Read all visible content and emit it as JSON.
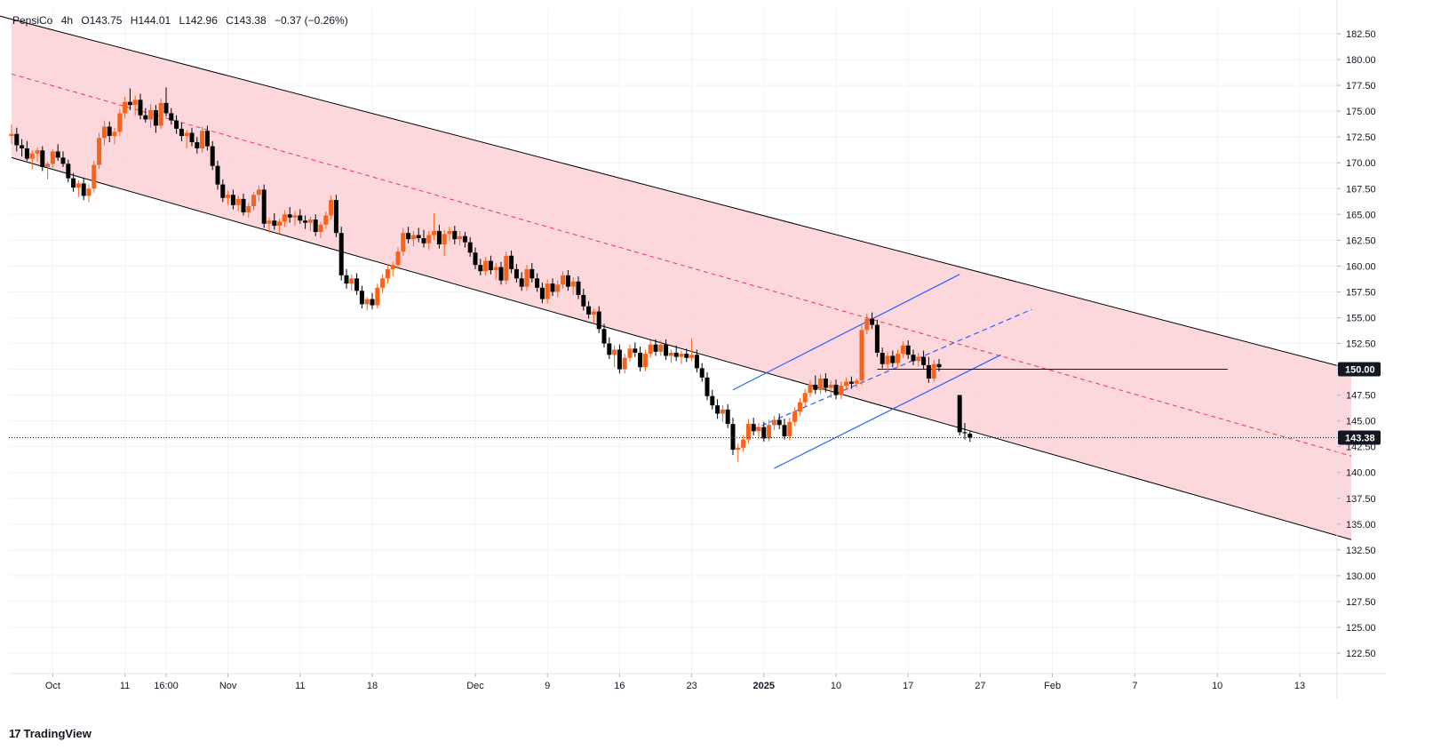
{
  "header": {
    "symbol": "PepsiCo",
    "interval": "4h",
    "open": "O143.75",
    "high": "H144.01",
    "low": "L142.96",
    "close": "C143.38",
    "change": "−0.37 (−0.26%)"
  },
  "footer": {
    "brand": "TradingView",
    "logo": "17"
  },
  "colors": {
    "up": "#f7631b",
    "down": "#000000",
    "channel_fill": "#fbd1d6",
    "channel_edge": "#000000",
    "mid_line": "#f23645",
    "trend": "#2962ff",
    "grid": "#f0f3fa",
    "last_price_label": "#131722"
  },
  "chart_data": {
    "type": "candlestick",
    "title": "",
    "xlabel": "",
    "ylabel": "",
    "ylim": [
      120.5,
      184.5
    ],
    "y_ticks": [
      "122.50",
      "125.00",
      "127.50",
      "130.00",
      "132.50",
      "135.00",
      "137.50",
      "140.00",
      "142.50",
      "145.00",
      "147.50",
      "150.00",
      "152.50",
      "155.00",
      "157.50",
      "160.00",
      "162.50",
      "165.00",
      "167.50",
      "170.00",
      "172.50",
      "175.00",
      "177.50",
      "180.00",
      "182.50"
    ],
    "x_ticks": [
      {
        "label": "Oct",
        "t": 4
      },
      {
        "label": "11",
        "t": 11
      },
      {
        "label": "16:00",
        "t": 15
      },
      {
        "label": "Nov",
        "t": 21
      },
      {
        "label": "11",
        "t": 28
      },
      {
        "label": "18",
        "t": 35
      },
      {
        "label": "Dec",
        "t": 45
      },
      {
        "label": "9",
        "t": 52
      },
      {
        "label": "16",
        "t": 59
      },
      {
        "label": "23",
        "t": 66
      },
      {
        "label": "2025",
        "t": 73,
        "bold": true
      },
      {
        "label": "10",
        "t": 80
      },
      {
        "label": "17",
        "t": 87
      },
      {
        "label": "27",
        "t": 94
      },
      {
        "label": "Feb",
        "t": 101
      },
      {
        "label": "7",
        "t": 109
      },
      {
        "label": "10",
        "t": 117
      },
      {
        "label": "13",
        "t": 125
      }
    ],
    "last_price": "143.38",
    "horizontal_level": "150.00",
    "candles": [
      [
        0,
        172.6,
        173.7,
        171.8,
        172.8
      ],
      [
        0.5,
        172.8,
        173.4,
        171.1,
        171.7
      ],
      [
        1,
        171.7,
        172.3,
        170.6,
        171.4
      ],
      [
        1.5,
        171.4,
        172.1,
        170.2,
        170.4
      ],
      [
        2,
        170.4,
        171.2,
        169.4,
        170.9
      ],
      [
        2.5,
        170.9,
        171.5,
        170.1,
        171.2
      ],
      [
        3,
        171.2,
        171.6,
        169.2,
        169.6
      ],
      [
        3.5,
        169.6,
        170.1,
        168.4,
        169.9
      ],
      [
        4,
        169.9,
        171.3,
        169.5,
        171.1
      ],
      [
        4.5,
        171.1,
        171.8,
        170.2,
        170.5
      ],
      [
        5,
        170.5,
        171.1,
        169.6,
        169.9
      ],
      [
        5.5,
        169.9,
        170.3,
        168.1,
        168.5
      ],
      [
        6,
        168.5,
        169.0,
        167.2,
        167.6
      ],
      [
        6.5,
        167.6,
        168.3,
        166.7,
        168.0
      ],
      [
        7,
        168.0,
        168.5,
        166.4,
        166.8
      ],
      [
        7.5,
        166.8,
        167.9,
        166.2,
        167.5
      ],
      [
        8,
        167.5,
        170.2,
        167.1,
        169.8
      ],
      [
        8.5,
        169.8,
        172.9,
        169.4,
        172.4
      ],
      [
        9,
        172.4,
        174.1,
        171.7,
        173.5
      ],
      [
        9.5,
        173.5,
        174.0,
        172.0,
        172.6
      ],
      [
        10,
        172.6,
        173.4,
        171.8,
        173.0
      ],
      [
        10.5,
        173.0,
        175.2,
        172.6,
        174.8
      ],
      [
        11,
        174.8,
        176.4,
        174.3,
        175.9
      ],
      [
        11.5,
        175.9,
        177.2,
        175.1,
        175.6
      ],
      [
        12,
        175.6,
        176.5,
        174.6,
        176.1
      ],
      [
        12.5,
        176.1,
        176.7,
        174.2,
        174.6
      ],
      [
        13,
        174.6,
        175.3,
        173.9,
        174.2
      ],
      [
        13.5,
        174.2,
        175.7,
        173.4,
        175.1
      ],
      [
        14,
        175.1,
        175.6,
        172.9,
        173.6
      ],
      [
        14.5,
        173.6,
        176.2,
        173.3,
        175.8
      ],
      [
        15,
        175.8,
        177.3,
        174.5,
        174.8
      ],
      [
        15.5,
        174.8,
        175.3,
        173.7,
        174.1
      ],
      [
        16,
        174.1,
        174.6,
        172.8,
        173.3
      ],
      [
        16.5,
        173.3,
        173.9,
        172.1,
        172.6
      ],
      [
        17,
        172.6,
        173.2,
        171.4,
        172.9
      ],
      [
        17.5,
        172.9,
        173.4,
        171.6,
        172.0
      ],
      [
        18,
        172.0,
        172.5,
        170.9,
        171.4
      ],
      [
        18.5,
        171.4,
        173.5,
        171.0,
        173.1
      ],
      [
        19,
        173.1,
        173.6,
        171.2,
        171.6
      ],
      [
        19.5,
        171.6,
        172.1,
        169.3,
        169.7
      ],
      [
        20,
        169.7,
        170.2,
        167.4,
        167.9
      ],
      [
        20.5,
        167.9,
        168.4,
        166.2,
        166.6
      ],
      [
        21,
        166.6,
        167.3,
        165.9,
        166.9
      ],
      [
        21.5,
        166.9,
        167.4,
        165.5,
        165.9
      ],
      [
        22,
        165.9,
        166.8,
        165.3,
        166.5
      ],
      [
        22.5,
        166.5,
        167.0,
        164.9,
        165.2
      ],
      [
        23,
        165.2,
        166.1,
        164.7,
        165.8
      ],
      [
        23.5,
        165.8,
        167.2,
        165.4,
        166.9
      ],
      [
        24,
        166.9,
        167.8,
        166.3,
        167.4
      ],
      [
        24.5,
        167.4,
        167.9,
        163.7,
        164.1
      ],
      [
        25,
        164.1,
        164.7,
        163.2,
        164.4
      ],
      [
        25.5,
        164.4,
        165.1,
        163.5,
        163.9
      ],
      [
        26,
        163.9,
        164.6,
        163.1,
        164.3
      ],
      [
        26.5,
        164.3,
        165.4,
        163.8,
        165.0
      ],
      [
        27,
        165.0,
        165.7,
        164.2,
        164.7
      ],
      [
        27.5,
        164.7,
        165.3,
        163.9,
        164.9
      ],
      [
        28,
        164.9,
        165.5,
        164.1,
        164.4
      ],
      [
        28.5,
        164.4,
        164.9,
        163.6,
        164.2
      ],
      [
        29,
        164.2,
        164.8,
        163.4,
        164.5
      ],
      [
        29.5,
        164.5,
        165.0,
        162.9,
        163.3
      ],
      [
        30,
        163.3,
        164.3,
        162.7,
        164.0
      ],
      [
        30.5,
        164.0,
        165.3,
        163.6,
        164.9
      ],
      [
        31,
        164.9,
        166.8,
        164.5,
        166.4
      ],
      [
        31.5,
        166.4,
        166.9,
        162.8,
        163.2
      ],
      [
        32,
        163.2,
        163.8,
        158.6,
        159.1
      ],
      [
        32.5,
        159.1,
        159.7,
        157.8,
        158.3
      ],
      [
        33,
        158.3,
        159.2,
        157.6,
        158.8
      ],
      [
        33.5,
        158.8,
        159.3,
        157.2,
        157.6
      ],
      [
        34,
        157.6,
        158.1,
        155.9,
        156.3
      ],
      [
        34.5,
        156.3,
        157.0,
        155.7,
        156.8
      ],
      [
        35,
        156.8,
        157.4,
        155.8,
        156.2
      ],
      [
        35.5,
        156.2,
        158.3,
        155.9,
        157.9
      ],
      [
        36,
        157.9,
        159.2,
        157.4,
        158.8
      ],
      [
        36.5,
        158.8,
        160.2,
        158.3,
        159.7
      ],
      [
        37,
        159.7,
        160.4,
        159.0,
        160.1
      ],
      [
        37.5,
        160.1,
        161.8,
        159.7,
        161.4
      ],
      [
        38,
        161.4,
        163.7,
        161.0,
        163.2
      ],
      [
        38.5,
        163.2,
        163.8,
        162.2,
        162.6
      ],
      [
        39,
        162.6,
        163.4,
        161.9,
        163.0
      ],
      [
        39.5,
        163.0,
        163.7,
        162.3,
        162.7
      ],
      [
        40,
        162.7,
        163.5,
        161.8,
        162.2
      ],
      [
        40.5,
        162.2,
        163.4,
        161.6,
        163.0
      ],
      [
        41,
        163.0,
        165.1,
        162.5,
        163.4
      ],
      [
        41.5,
        163.4,
        164.0,
        161.7,
        162.1
      ],
      [
        42,
        162.1,
        163.5,
        161.0,
        163.1
      ],
      [
        42.5,
        163.1,
        163.8,
        162.4,
        163.4
      ],
      [
        43,
        163.4,
        163.9,
        162.1,
        162.6
      ],
      [
        43.5,
        162.6,
        163.4,
        162.0,
        162.9
      ],
      [
        44,
        162.9,
        163.3,
        161.8,
        162.3
      ],
      [
        44.5,
        162.3,
        162.8,
        160.9,
        161.3
      ],
      [
        45,
        161.3,
        161.8,
        159.7,
        160.1
      ],
      [
        45.5,
        160.1,
        160.7,
        159.1,
        159.5
      ],
      [
        46,
        159.5,
        160.9,
        159.1,
        160.5
      ],
      [
        46.5,
        160.5,
        161.0,
        159.2,
        159.6
      ],
      [
        47,
        159.6,
        160.3,
        158.7,
        159.9
      ],
      [
        47.5,
        159.9,
        160.4,
        158.2,
        158.6
      ],
      [
        48,
        158.6,
        161.4,
        158.2,
        161.0
      ],
      [
        48.5,
        161.0,
        161.5,
        159.3,
        159.7
      ],
      [
        49,
        159.7,
        160.2,
        158.4,
        158.8
      ],
      [
        49.5,
        158.8,
        159.4,
        157.6,
        158.0
      ],
      [
        50,
        158.0,
        160.1,
        157.6,
        159.7
      ],
      [
        50.5,
        159.7,
        160.3,
        158.4,
        158.8
      ],
      [
        51,
        158.8,
        159.3,
        157.5,
        157.9
      ],
      [
        51.5,
        157.9,
        158.4,
        156.4,
        156.8
      ],
      [
        52,
        156.8,
        158.7,
        156.4,
        158.3
      ],
      [
        52.5,
        158.3,
        158.8,
        157.1,
        157.5
      ],
      [
        53,
        157.5,
        158.6,
        157.0,
        158.2
      ],
      [
        53.5,
        158.2,
        159.5,
        157.8,
        159.1
      ],
      [
        54,
        159.1,
        159.6,
        157.6,
        158.0
      ],
      [
        54.5,
        158.0,
        158.9,
        157.2,
        158.5
      ],
      [
        55,
        158.5,
        159.0,
        156.8,
        157.2
      ],
      [
        55.5,
        157.2,
        157.8,
        155.7,
        156.1
      ],
      [
        56,
        156.1,
        156.6,
        154.9,
        155.3
      ],
      [
        56.5,
        155.3,
        155.9,
        154.4,
        155.6
      ],
      [
        57,
        155.6,
        156.1,
        153.5,
        153.9
      ],
      [
        57.5,
        153.9,
        154.4,
        152.1,
        152.5
      ],
      [
        58,
        152.5,
        153.1,
        151.0,
        151.4
      ],
      [
        58.5,
        151.4,
        152.3,
        150.2,
        151.9
      ],
      [
        59,
        151.9,
        152.4,
        149.6,
        150.0
      ],
      [
        59.5,
        150.0,
        151.5,
        149.6,
        151.1
      ],
      [
        60,
        151.1,
        152.4,
        150.7,
        152.0
      ],
      [
        60.5,
        152.0,
        152.6,
        151.2,
        151.6
      ],
      [
        61,
        151.6,
        152.2,
        149.8,
        150.2
      ],
      [
        61.5,
        150.2,
        151.9,
        149.8,
        151.5
      ],
      [
        62,
        151.5,
        152.8,
        151.1,
        152.4
      ],
      [
        62.5,
        152.4,
        152.9,
        151.3,
        151.7
      ],
      [
        63,
        151.7,
        152.8,
        151.3,
        152.4
      ],
      [
        63.5,
        152.4,
        152.9,
        150.9,
        151.3
      ],
      [
        64,
        151.3,
        151.9,
        150.6,
        151.6
      ],
      [
        64.5,
        151.6,
        152.3,
        150.8,
        151.2
      ],
      [
        65,
        151.2,
        151.8,
        150.5,
        151.5
      ],
      [
        65.5,
        151.5,
        152.0,
        150.7,
        151.1
      ],
      [
        66,
        151.1,
        153.0,
        150.8,
        151.4
      ],
      [
        66.5,
        151.4,
        151.9,
        149.7,
        150.1
      ],
      [
        67,
        150.1,
        150.6,
        148.8,
        149.2
      ],
      [
        67.5,
        149.2,
        149.7,
        147.0,
        147.4
      ],
      [
        68,
        147.4,
        148.0,
        146.1,
        146.5
      ],
      [
        68.5,
        146.5,
        147.1,
        145.2,
        145.7
      ],
      [
        69,
        145.7,
        146.5,
        144.9,
        146.1
      ],
      [
        69.5,
        146.1,
        146.6,
        144.3,
        144.7
      ],
      [
        70,
        144.7,
        145.3,
        141.7,
        142.2
      ],
      [
        70.5,
        142.2,
        142.8,
        141.0,
        142.4
      ],
      [
        71,
        142.4,
        143.6,
        142.0,
        143.2
      ],
      [
        71.5,
        143.2,
        145.2,
        142.8,
        144.7
      ],
      [
        72,
        144.7,
        145.3,
        143.6,
        144.0
      ],
      [
        72.5,
        144.0,
        144.8,
        143.2,
        144.4
      ],
      [
        73,
        144.4,
        144.9,
        143.0,
        143.3
      ],
      [
        73.5,
        143.3,
        145.1,
        143.0,
        144.6
      ],
      [
        74,
        144.6,
        145.5,
        144.1,
        145.1
      ],
      [
        74.5,
        145.1,
        145.7,
        144.2,
        144.6
      ],
      [
        75,
        144.6,
        145.2,
        143.2,
        143.5
      ],
      [
        75.5,
        143.5,
        145.3,
        143.1,
        144.9
      ],
      [
        76,
        144.9,
        146.3,
        144.5,
        145.9
      ],
      [
        76.5,
        145.9,
        147.2,
        145.5,
        146.8
      ],
      [
        77,
        146.8,
        148.1,
        146.4,
        147.7
      ],
      [
        77.5,
        147.7,
        148.9,
        147.3,
        148.5
      ],
      [
        78,
        148.5,
        149.4,
        147.6,
        148.0
      ],
      [
        78.5,
        148.0,
        149.5,
        147.6,
        149.1
      ],
      [
        79,
        149.1,
        149.6,
        147.8,
        148.2
      ],
      [
        79.5,
        148.2,
        148.9,
        147.2,
        148.5
      ],
      [
        80,
        148.5,
        149.0,
        147.1,
        147.5
      ],
      [
        80.5,
        147.5,
        148.8,
        147.1,
        148.4
      ],
      [
        81,
        148.4,
        149.2,
        148.0,
        148.8
      ],
      [
        81.5,
        148.8,
        149.3,
        148.1,
        148.6
      ],
      [
        82,
        148.6,
        149.1,
        148.2,
        148.9
      ],
      [
        82.5,
        148.9,
        154.3,
        148.5,
        153.8
      ],
      [
        83,
        153.8,
        155.4,
        153.4,
        154.9
      ],
      [
        83.5,
        154.9,
        155.5,
        153.9,
        154.3
      ],
      [
        84,
        154.3,
        154.8,
        151.2,
        151.6
      ],
      [
        84.5,
        151.6,
        152.1,
        150.1,
        150.5
      ],
      [
        85,
        150.5,
        151.7,
        149.9,
        151.3
      ],
      [
        85.5,
        151.3,
        151.8,
        150.2,
        150.6
      ],
      [
        86,
        150.6,
        151.9,
        150.2,
        151.5
      ],
      [
        86.5,
        151.5,
        152.7,
        151.1,
        152.3
      ],
      [
        87,
        152.3,
        152.8,
        151.0,
        151.4
      ],
      [
        87.5,
        151.4,
        151.9,
        150.4,
        150.8
      ],
      [
        88,
        150.8,
        151.6,
        150.3,
        151.2
      ],
      [
        88.5,
        151.2,
        151.8,
        150.0,
        150.4
      ],
      [
        89,
        150.4,
        151.2,
        148.7,
        149.1
      ],
      [
        89.5,
        149.1,
        150.9,
        148.8,
        150.5
      ],
      [
        90,
        150.5,
        151.0,
        149.8,
        150.2
      ],
      [
        92,
        147.5,
        147.5,
        143.6,
        143.9
      ],
      [
        92.5,
        143.9,
        144.8,
        143.2,
        143.8
      ],
      [
        93,
        143.75,
        144.01,
        142.96,
        143.38
      ]
    ],
    "channel": {
      "upper": [
        [
          -8,
          186.0
        ],
        [
          130,
          150.0
        ]
      ],
      "lower": [
        [
          0,
          170.5
        ],
        [
          130,
          133.5
        ]
      ],
      "mid": [
        [
          0,
          178.6
        ],
        [
          130,
          141.6
        ]
      ]
    },
    "rising_channel": {
      "upper": [
        [
          70,
          148.0
        ],
        [
          92,
          159.2
        ]
      ],
      "lower": [
        [
          74,
          140.4
        ],
        [
          96,
          151.4
        ]
      ],
      "mid": [
        [
          72,
          144.2
        ],
        [
          99,
          155.8
        ]
      ]
    },
    "level_line": [
      [
        84,
        150.0
      ],
      [
        118,
        150.0
      ]
    ]
  }
}
